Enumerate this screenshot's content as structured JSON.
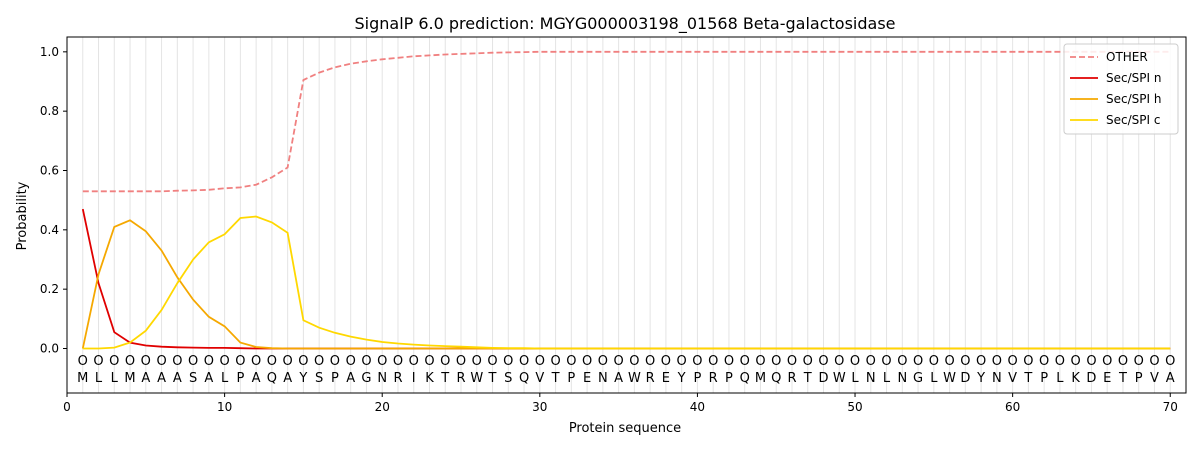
{
  "chart_data": {
    "type": "line",
    "title": "SignalP 6.0 prediction: MGYG000003198_01568 Beta-galactosidase",
    "xlabel": "Protein sequence",
    "ylabel": "Probability",
    "xlim": [
      0,
      71
    ],
    "ylim": [
      -0.15,
      1.05
    ],
    "x_ticks": [
      0,
      10,
      20,
      30,
      40,
      50,
      60,
      70
    ],
    "y_ticks": [
      0.0,
      0.2,
      0.4,
      0.6,
      0.8,
      1.0
    ],
    "grid": "vertical lines at each residue",
    "legend_position": "top-right",
    "sequence": "MLLMAAASALPAQAYSPAGNRIKTRWTSQVTPENAWREYPRPQMQRTDWLNLNGLWDYNVTPLKDETPVA",
    "region_label": "O",
    "series": [
      {
        "name": "OTHER",
        "color": "#f08080",
        "style": "dashed",
        "values": [
          0.53,
          0.53,
          0.53,
          0.53,
          0.53,
          0.53,
          0.532,
          0.533,
          0.535,
          0.54,
          0.543,
          0.552,
          0.577,
          0.61,
          0.905,
          0.93,
          0.948,
          0.96,
          0.968,
          0.975,
          0.98,
          0.985,
          0.988,
          0.991,
          0.993,
          0.995,
          0.997,
          0.998,
          0.999,
          1,
          1,
          1,
          1,
          1,
          1,
          1,
          1,
          1,
          1,
          1,
          1,
          1,
          1,
          1,
          1,
          1,
          1,
          1,
          1,
          1,
          1,
          1,
          1,
          1,
          1,
          1,
          1,
          1,
          1,
          1,
          1,
          1,
          1,
          1,
          1,
          1,
          1,
          1,
          1,
          1
        ]
      },
      {
        "name": "Sec/SPI n",
        "color": "#e00000",
        "style": "solid",
        "values": [
          0.47,
          0.22,
          0.055,
          0.02,
          0.01,
          0.006,
          0.004,
          0.003,
          0.002,
          0.002,
          0.001,
          0,
          0,
          0,
          0,
          0,
          0,
          0,
          0,
          0,
          0,
          0,
          0,
          0,
          0,
          0,
          0,
          0,
          0,
          0,
          0,
          0,
          0,
          0,
          0,
          0,
          0,
          0,
          0,
          0,
          0,
          0,
          0,
          0,
          0,
          0,
          0,
          0,
          0,
          0,
          0,
          0,
          0,
          0,
          0,
          0,
          0,
          0,
          0,
          0,
          0,
          0,
          0,
          0,
          0,
          0,
          0,
          0,
          0,
          0
        ]
      },
      {
        "name": "Sec/SPI h",
        "color": "#f5a800",
        "style": "solid",
        "values": [
          0.0,
          0.25,
          0.41,
          0.432,
          0.395,
          0.33,
          0.24,
          0.165,
          0.107,
          0.075,
          0.02,
          0.005,
          0.001,
          0,
          0,
          0,
          0,
          0,
          0,
          0,
          0,
          0,
          0,
          0,
          0,
          0,
          0,
          0,
          0,
          0,
          0,
          0,
          0,
          0,
          0,
          0,
          0,
          0,
          0,
          0,
          0,
          0,
          0,
          0,
          0,
          0,
          0,
          0,
          0,
          0,
          0,
          0,
          0,
          0,
          0,
          0,
          0,
          0,
          0,
          0,
          0,
          0,
          0,
          0,
          0,
          0,
          0,
          0,
          0,
          0
        ]
      },
      {
        "name": "Sec/SPI c",
        "color": "#ffd800",
        "style": "solid",
        "values": [
          0.0,
          0.0,
          0.003,
          0.02,
          0.06,
          0.13,
          0.22,
          0.3,
          0.358,
          0.385,
          0.44,
          0.445,
          0.425,
          0.39,
          0.095,
          0.07,
          0.053,
          0.04,
          0.03,
          0.022,
          0.017,
          0.013,
          0.01,
          0.008,
          0.006,
          0.004,
          0.002,
          0.001,
          0.001,
          0,
          0,
          0,
          0,
          0,
          0,
          0,
          0,
          0,
          0,
          0,
          0,
          0,
          0,
          0,
          0,
          0,
          0,
          0,
          0,
          0,
          0,
          0,
          0,
          0,
          0,
          0,
          0,
          0,
          0,
          0,
          0,
          0,
          0,
          0,
          0,
          0,
          0,
          0,
          0,
          0
        ]
      }
    ]
  }
}
